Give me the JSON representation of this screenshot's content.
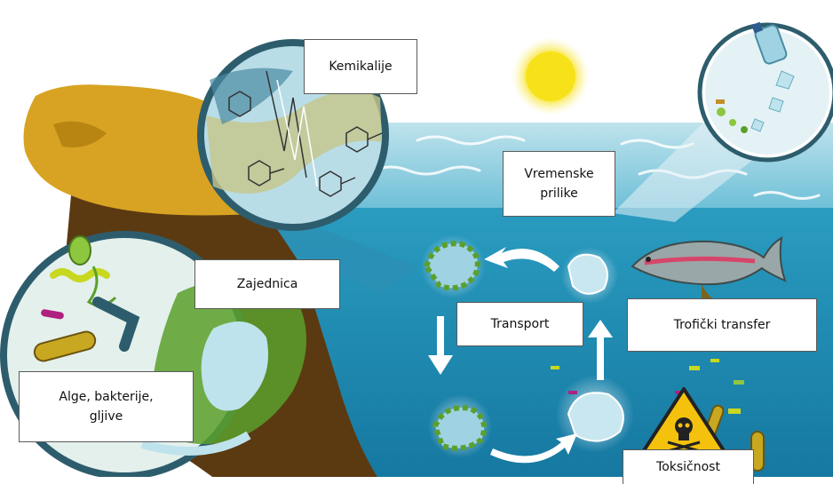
{
  "labels": {
    "kemikalije": "Kemikalije",
    "vremenske": "Vremenske\nprilike",
    "zajednica": "Zajednica",
    "transport": "Transport",
    "troficki": "Trofički transfer",
    "alge": "Alge, bakterije,\ngljive",
    "toksicnost": "Toksičnost"
  },
  "colors": {
    "sea": "#1f8fb4",
    "sea_light": "#bfe3ec",
    "sky": "#ffffff",
    "sand": "#d8a323",
    "rock": "#5b3a12",
    "sun": "#f7e21a",
    "zoom_fill": "#cfe8ef",
    "zoom_ring": "#2d5d6d",
    "arrow": "#ffffff",
    "warning": "#f4c20d"
  },
  "icons": [
    "sun-icon",
    "fish-icon",
    "bottle-icon",
    "skull-warning-icon",
    "microbe-icon"
  ]
}
